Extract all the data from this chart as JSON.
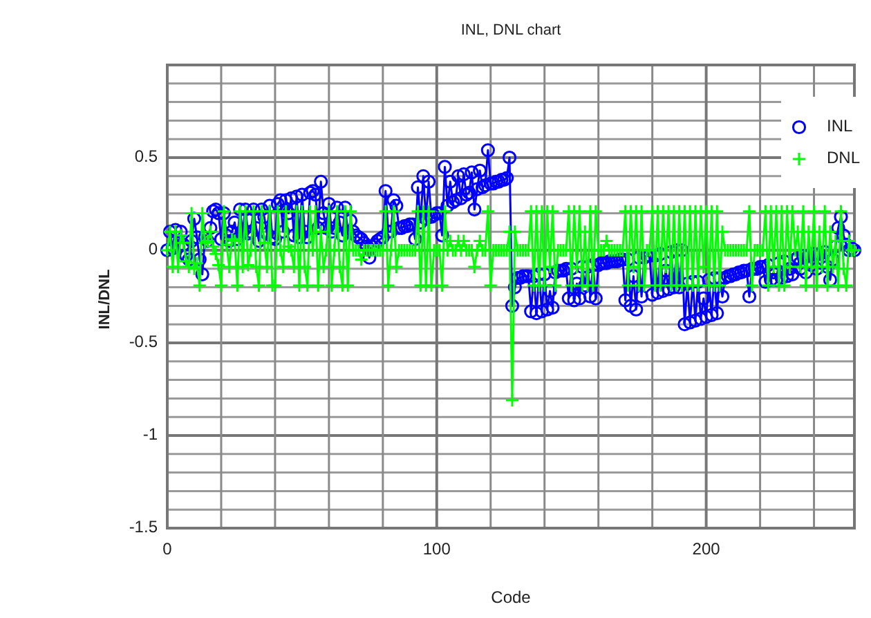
{
  "chart_data": {
    "type": "line",
    "title": "INL, DNL chart",
    "xlabel": "Code",
    "ylabel": "INL/DNL",
    "x": [
      0,
      1,
      2,
      3,
      4,
      5,
      6,
      7,
      8,
      9,
      10,
      11,
      12,
      13,
      14,
      15,
      16,
      17,
      18,
      19,
      20,
      21,
      22,
      23,
      24,
      25,
      26,
      27,
      28,
      29,
      30,
      31,
      32,
      33,
      34,
      35,
      36,
      37,
      38,
      39,
      40,
      41,
      42,
      43,
      44,
      45,
      46,
      47,
      48,
      49,
      50,
      51,
      52,
      53,
      54,
      55,
      56,
      57,
      58,
      59,
      60,
      61,
      62,
      63,
      64,
      65,
      66,
      67,
      68,
      69,
      70,
      71,
      72,
      73,
      74,
      75,
      76,
      77,
      78,
      79,
      80,
      81,
      82,
      83,
      84,
      85,
      86,
      87,
      88,
      89,
      90,
      91,
      92,
      93,
      94,
      95,
      96,
      97,
      98,
      99,
      100,
      101,
      102,
      103,
      104,
      105,
      106,
      107,
      108,
      109,
      110,
      111,
      112,
      113,
      114,
      115,
      116,
      117,
      118,
      119,
      120,
      121,
      122,
      123,
      124,
      125,
      126,
      127,
      128,
      129,
      130,
      131,
      132,
      133,
      134,
      135,
      136,
      137,
      138,
      139,
      140,
      141,
      142,
      143,
      144,
      145,
      146,
      147,
      148,
      149,
      150,
      151,
      152,
      153,
      154,
      155,
      156,
      157,
      158,
      159,
      160,
      161,
      162,
      163,
      164,
      165,
      166,
      167,
      168,
      169,
      170,
      171,
      172,
      173,
      174,
      175,
      176,
      177,
      178,
      179,
      180,
      181,
      182,
      183,
      184,
      185,
      186,
      187,
      188,
      189,
      190,
      191,
      192,
      193,
      194,
      195,
      196,
      197,
      198,
      199,
      200,
      201,
      202,
      203,
      204,
      205,
      206,
      207,
      208,
      209,
      210,
      211,
      212,
      213,
      214,
      215,
      216,
      217,
      218,
      219,
      220,
      221,
      222,
      223,
      224,
      225,
      226,
      227,
      228,
      229,
      230,
      231,
      232,
      233,
      234,
      235,
      236,
      237,
      238,
      239,
      240,
      241,
      242,
      243,
      244,
      245,
      246,
      247,
      248,
      249,
      250,
      251,
      252,
      253,
      254,
      255
    ],
    "series": [
      {
        "name": "INL",
        "color": "#0000ff",
        "marker": "circle",
        "values": [
          0,
          0.1,
          0.01,
          0.11,
          0.02,
          0.1,
          0.03,
          -0.03,
          -0.05,
          0.05,
          0.17,
          0.07,
          -0.05,
          -0.13,
          0.07,
          0.05,
          0.12,
          0.21,
          0.22,
          0.2,
          0.06,
          0.2,
          0.08,
          0.05,
          0.1,
          0.15,
          0.06,
          0.22,
          0.1,
          0.22,
          0.09,
          0.1,
          0.22,
          0.12,
          0.05,
          0.22,
          0.18,
          0.09,
          0.24,
          0.07,
          0.06,
          0.25,
          0.27,
          0.1,
          0.27,
          0.2,
          0.28,
          0.08,
          0.29,
          0.07,
          0.3,
          0.1,
          0.07,
          0.31,
          0.32,
          0.3,
          0.12,
          0.37,
          0.2,
          0.12,
          0.25,
          0.1,
          0.12,
          0.23,
          0.15,
          0.08,
          0.23,
          0.1,
          0.16,
          0.1,
          0.08,
          0.07,
          0.06,
          0.04,
          0.02,
          -0.04,
          0.02,
          0.03,
          0.05,
          0.06,
          0.07,
          0.32,
          0.1,
          0.1,
          0.27,
          0.24,
          0.12,
          0.12,
          0.13,
          0.13,
          0.14,
          0.14,
          0.06,
          0.34,
          0.15,
          0.4,
          0.17,
          0.37,
          0.18,
          0.19,
          0.2,
          0.2,
          0.08,
          0.45,
          0.24,
          0.37,
          0.26,
          0.27,
          0.4,
          0.28,
          0.41,
          0.3,
          0.31,
          0.42,
          0.22,
          0.33,
          0.43,
          0.34,
          0.35,
          0.54,
          0.36,
          0.36,
          0.37,
          0.37,
          0.38,
          0.38,
          0.39,
          0.5,
          -0.3,
          -0.2,
          -0.15,
          -0.15,
          -0.14,
          -0.14,
          -0.14,
          -0.33,
          -0.14,
          -0.34,
          -0.13,
          -0.33,
          -0.13,
          -0.32,
          -0.22,
          -0.31,
          -0.12,
          -0.11,
          -0.11,
          -0.11,
          -0.1,
          -0.26,
          -0.1,
          -0.27,
          -0.18,
          -0.26,
          -0.09,
          -0.19,
          -0.09,
          -0.25,
          -0.08,
          -0.26,
          -0.08,
          -0.07,
          -0.07,
          -0.07,
          -0.06,
          -0.06,
          -0.06,
          -0.06,
          -0.05,
          -0.05,
          -0.27,
          -0.05,
          -0.3,
          -0.14,
          -0.32,
          -0.04,
          -0.25,
          -0.04,
          -0.03,
          -0.03,
          -0.24,
          -0.03,
          -0.23,
          -0.02,
          -0.22,
          -0.11,
          -0.21,
          -0.01,
          -0.2,
          0,
          -0.2,
          0,
          -0.4,
          -0.18,
          -0.39,
          -0.17,
          -0.38,
          -0.17,
          -0.37,
          -0.26,
          -0.36,
          -0.16,
          -0.35,
          -0.15,
          -0.34,
          -0.15,
          -0.25,
          -0.15,
          -0.14,
          -0.14,
          -0.13,
          -0.13,
          -0.12,
          -0.12,
          -0.11,
          -0.11,
          -0.25,
          -0.1,
          -0.1,
          -0.1,
          -0.09,
          -0.09,
          -0.17,
          -0.08,
          -0.16,
          -0.12,
          -0.16,
          -0.07,
          -0.15,
          -0.06,
          -0.14,
          -0.1,
          -0.13,
          -0.05,
          -0.04,
          -0.1,
          -0.03,
          -0.12,
          -0.03,
          -0.08,
          -0.02,
          -0.1,
          -0.02,
          -0.07,
          -0.01,
          -0.09,
          -0.16,
          -0.05,
          0.02,
          0.12,
          0.18,
          0.08,
          0.03,
          0,
          0.01,
          0
        ]
      },
      {
        "name": "DNL",
        "color": "#00ff00",
        "marker": "cross",
        "values": [
          0,
          0.1,
          -0.09,
          0.1,
          -0.09,
          0.08,
          0.04,
          -0.06,
          -0.09,
          0.2,
          -0.1,
          -0.07,
          -0.19,
          0.2,
          0.04,
          0.05,
          0.1,
          0.02,
          -0.02,
          -0.08,
          -0.19,
          0.21,
          0.03,
          -0.09,
          0.06,
          0.05,
          -0.19,
          0.21,
          -0.09,
          0.21,
          -0.08,
          0,
          0.21,
          -0.09,
          -0.19,
          0.21,
          0.04,
          -0.09,
          0.21,
          -0.19,
          -0.19,
          0.21,
          0,
          -0.09,
          0.21,
          0.02,
          0,
          -0.09,
          0.21,
          -0.19,
          0.21,
          -0.09,
          -0.19,
          0.21,
          0,
          0.21,
          -0.19,
          0.1,
          -0.09,
          0,
          0.21,
          -0.19,
          0,
          0.21,
          -0.09,
          -0.19,
          0.21,
          -0.19,
          0.21,
          0,
          0,
          0,
          -0.05,
          0,
          0,
          0,
          0,
          0,
          0,
          0,
          0,
          0.21,
          -0.19,
          0,
          0.21,
          -0.09,
          0,
          0,
          0,
          0,
          0,
          0,
          0,
          0.21,
          -0.19,
          0.21,
          -0.19,
          0.21,
          -0.19,
          0,
          0,
          0,
          -0.19,
          0.21,
          0,
          0.05,
          0,
          0,
          0.05,
          0,
          0.05,
          0,
          0,
          0,
          -0.09,
          0,
          0.05,
          0,
          0,
          0.21,
          -0.19,
          0,
          0,
          0,
          0,
          0,
          0,
          0.1,
          -0.81,
          0.1,
          0,
          0,
          0,
          0,
          0,
          0.21,
          -0.19,
          0.21,
          -0.19,
          0.21,
          -0.19,
          0.21,
          -0.09,
          0.21,
          -0.19,
          0,
          0,
          0,
          0,
          0.21,
          -0.19,
          0.21,
          -0.09,
          0.21,
          -0.19,
          0.1,
          -0.19,
          0.21,
          -0.19,
          0.21,
          0,
          0,
          0,
          0.05,
          0,
          0,
          0,
          0,
          0,
          0,
          0.21,
          -0.19,
          0.21,
          -0.09,
          0.21,
          -0.19,
          0.21,
          -0.19,
          0,
          0,
          0.21,
          -0.19,
          0.21,
          -0.19,
          0.21,
          -0.09,
          0.21,
          -0.19,
          0.21,
          -0.19,
          0.21,
          -0.19,
          0.21,
          -0.19,
          0.21,
          -0.19,
          0.21,
          -0.19,
          0.21,
          -0.09,
          0.21,
          -0.19,
          0.21,
          -0.19,
          0.21,
          -0.19,
          0.1,
          0,
          0,
          0,
          0,
          0,
          0,
          0,
          0,
          0,
          0.21,
          -0.19,
          0,
          0,
          0,
          0,
          0.21,
          -0.19,
          0.21,
          -0.09,
          0.21,
          -0.19,
          0.21,
          -0.19,
          0.21,
          -0.09,
          0.21,
          0,
          0.1,
          -0.09,
          0.21,
          -0.19,
          0.1,
          -0.09,
          0.21,
          -0.19,
          0.1,
          -0.09,
          0.21,
          -0.19,
          0.1,
          -0.09,
          0.05,
          -0.19,
          0.21,
          -0.1,
          -0.19,
          0.05,
          0,
          0
        ]
      }
    ],
    "xlim": [
      0,
      255
    ],
    "ylim": [
      -1.5,
      1
    ],
    "xticks": [
      0,
      {
        "value": 20,
        "label": null
      },
      {
        "value": 40,
        "label": null
      },
      {
        "value": 60,
        "label": null
      },
      {
        "value": 80,
        "label": null
      },
      100,
      {
        "value": 120,
        "label": null
      },
      {
        "value": 140,
        "label": null
      },
      {
        "value": 160,
        "label": null
      },
      {
        "value": 180,
        "label": null
      },
      200,
      {
        "value": 220,
        "label": null
      },
      {
        "value": 240,
        "label": null
      }
    ],
    "yticks": [
      -1.5,
      {
        "value": -1.4,
        "label": null
      },
      {
        "value": -1.3,
        "label": null
      },
      {
        "value": -1.2,
        "label": null
      },
      {
        "value": -1.1,
        "label": null
      },
      -1,
      {
        "value": -0.9,
        "label": null
      },
      {
        "value": -0.8,
        "label": null
      },
      {
        "value": -0.7,
        "label": null
      },
      {
        "value": -0.6,
        "label": null
      },
      -0.5,
      {
        "value": -0.4,
        "label": null
      },
      {
        "value": -0.3,
        "label": null
      },
      {
        "value": -0.2,
        "label": null
      },
      {
        "value": -0.1,
        "label": null
      },
      0,
      {
        "value": 0.1,
        "label": null
      },
      {
        "value": 0.2,
        "label": null
      },
      {
        "value": 0.3,
        "label": null
      },
      {
        "value": 0.4,
        "label": null
      },
      0.5,
      {
        "value": 0.6,
        "label": null
      },
      {
        "value": 0.7,
        "label": null
      },
      {
        "value": 0.8,
        "label": null
      },
      {
        "value": 0.9,
        "label": null
      }
    ],
    "grid": true,
    "legend": "top right"
  }
}
